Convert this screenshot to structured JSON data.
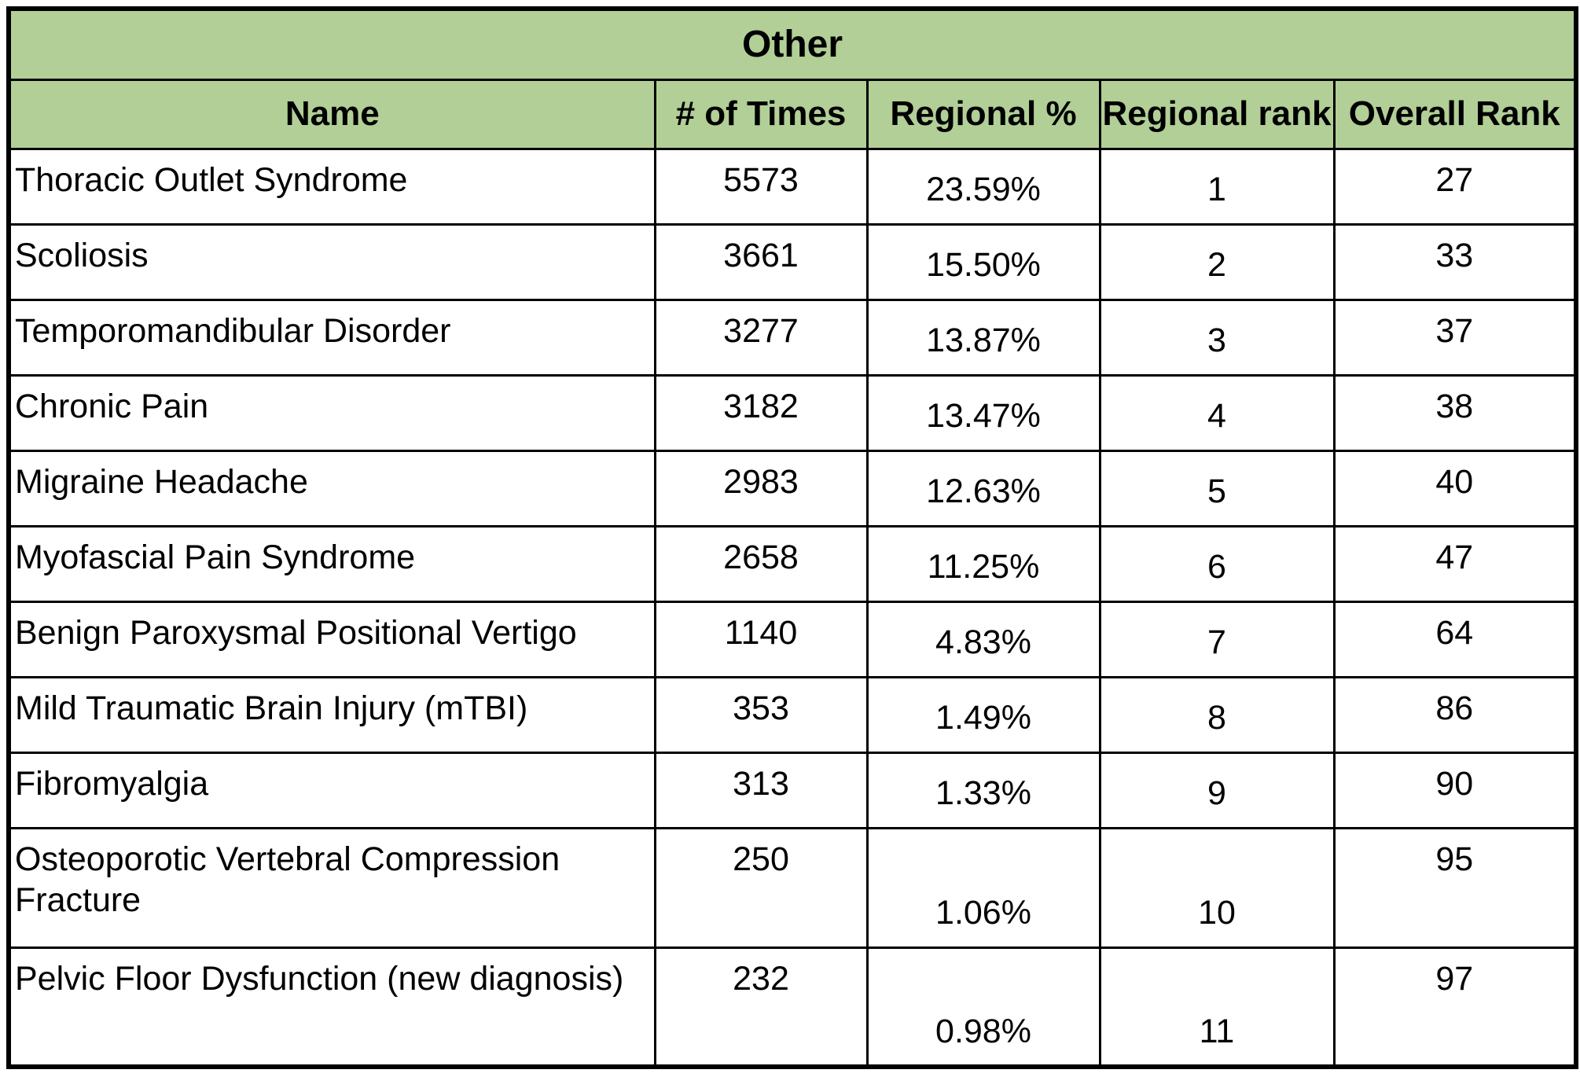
{
  "chart_data": {
    "type": "table",
    "title": "Other",
    "columns": [
      "Name",
      "# of Times",
      "Regional %",
      "Regional rank",
      "Overall Rank"
    ],
    "rows": [
      {
        "name": "Thoracic Outlet Syndrome",
        "times": "5573",
        "regional_pct": "23.59%",
        "regional_rank": "1",
        "overall_rank": "27"
      },
      {
        "name": "Scoliosis",
        "times": "3661",
        "regional_pct": "15.50%",
        "regional_rank": "2",
        "overall_rank": "33"
      },
      {
        "name": "Temporomandibular Disorder",
        "times": "3277",
        "regional_pct": "13.87%",
        "regional_rank": "3",
        "overall_rank": "37"
      },
      {
        "name": "Chronic Pain",
        "times": "3182",
        "regional_pct": "13.47%",
        "regional_rank": "4",
        "overall_rank": "38"
      },
      {
        "name": "Migraine Headache",
        "times": "2983",
        "regional_pct": "12.63%",
        "regional_rank": "5",
        "overall_rank": "40"
      },
      {
        "name": "Myofascial Pain Syndrome",
        "times": "2658",
        "regional_pct": "11.25%",
        "regional_rank": "6",
        "overall_rank": "47"
      },
      {
        "name": "Benign Paroxysmal Positional Vertigo",
        "times": "1140",
        "regional_pct": "4.83%",
        "regional_rank": "7",
        "overall_rank": "64"
      },
      {
        "name": "Mild Traumatic Brain Injury (mTBI)",
        "times": "353",
        "regional_pct": "1.49%",
        "regional_rank": "8",
        "overall_rank": "86"
      },
      {
        "name": "Fibromyalgia",
        "times": "313",
        "regional_pct": "1.33%",
        "regional_rank": "9",
        "overall_rank": "90"
      },
      {
        "name": "Osteoporotic Vertebral Compression Fracture",
        "times": "250",
        "regional_pct": "1.06%",
        "regional_rank": "10",
        "overall_rank": "95"
      },
      {
        "name": "Pelvic Floor Dysfunction (new diagnosis)",
        "times": "232",
        "regional_pct": "0.98%",
        "regional_rank": "11",
        "overall_rank": "97"
      }
    ]
  },
  "colors": {
    "header_fill": "#b1cf96",
    "border": "#000000",
    "text": "#000000",
    "body_fill": "#ffffff"
  }
}
